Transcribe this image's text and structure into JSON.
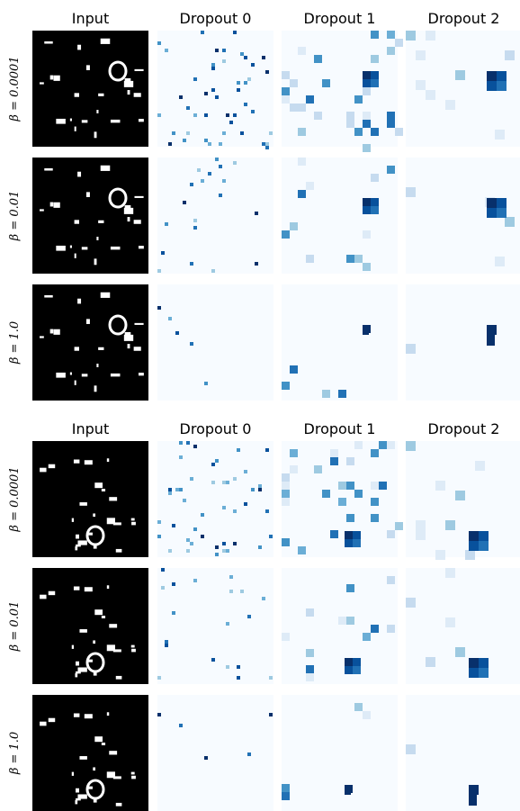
{
  "panels": [
    {
      "columns": [
        "Input",
        "Dropout 0",
        "Dropout 1",
        "Dropout 2"
      ],
      "rows": [
        "β = 0.0001",
        "β = 0.01",
        "β = 1.0"
      ]
    },
    {
      "columns": [
        "Input",
        "Dropout 0",
        "Dropout 1",
        "Dropout 2"
      ],
      "rows": [
        "β = 0.0001",
        "β = 0.01",
        "β = 1.0"
      ]
    }
  ]
}
